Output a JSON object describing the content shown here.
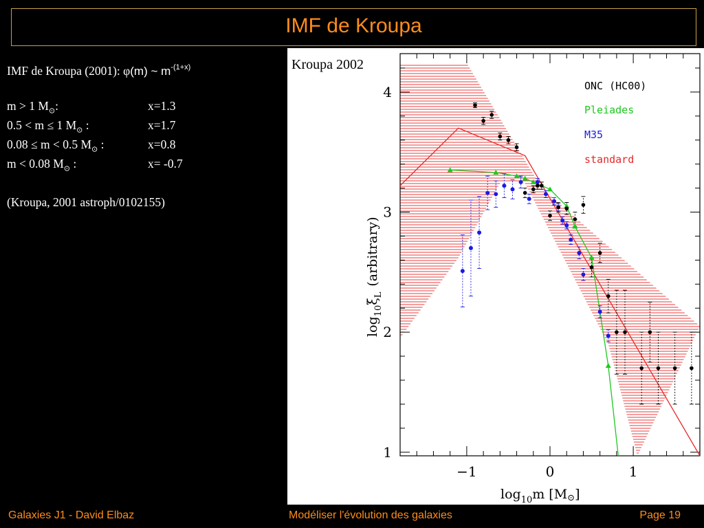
{
  "slide": {
    "title": "IMF de Kroupa"
  },
  "text_panel": {
    "heading_prefix": "IMF de Kroupa (2001): ",
    "phi_symbol": "φ",
    "heading_formula": "(m) ~ m",
    "heading_exponent": "-(1+x)",
    "rows": [
      {
        "mass": "m > 1 M",
        "sep": ":",
        "slope": "x=1.3"
      },
      {
        "mass": "0.5 < m ≤ 1 M",
        "sep": " :",
        "slope": "x=1.7"
      },
      {
        "mass": "0.08 ≤ m < 0.5 M",
        "sep": " :",
        "slope": "x=0.8"
      },
      {
        "mass": "m < 0.08 M",
        "sep": " :",
        "slope": "x= -0.7"
      }
    ],
    "sun_symbol": "⊙",
    "reference": "(Kroupa, 2001 astroph/0102155)"
  },
  "chart_data": {
    "type": "scatter",
    "title": "Kroupa 2002",
    "xlabel_main": "log",
    "xlabel_sub": "10",
    "xlabel_rest": "m [M",
    "xlabel_sun": "⊙",
    "xlabel_close": "]",
    "ylabel_main": "log",
    "ylabel_sub": "10",
    "ylabel_xi": "ξ",
    "ylabel_L": "L",
    "ylabel_rest": "(arbitrary)",
    "xlim": [
      -1.8,
      1.8
    ],
    "ylim": [
      0.97,
      4.32
    ],
    "xticks": [
      -1,
      0,
      1
    ],
    "xtick_labels": [
      "−1",
      "0",
      "1"
    ],
    "yticks": [
      1,
      2,
      3,
      4
    ],
    "ytick_labels": [
      "1",
      "2",
      "3",
      "4"
    ],
    "legend_position": "top-right",
    "colors": {
      "ONC": "#000000",
      "Pleiades": "#1ec81e",
      "M35": "#1a1ae6",
      "standard": "#e62828"
    },
    "series": [
      {
        "name": "ONC (HC00)",
        "key": "ONC",
        "marker": "circle",
        "points": [
          [
            -0.9,
            3.89,
            0.02
          ],
          [
            -0.8,
            3.76,
            0.03
          ],
          [
            -0.7,
            3.81,
            0.03
          ],
          [
            -0.6,
            3.63,
            0.03
          ],
          [
            -0.5,
            3.6,
            0.03
          ],
          [
            -0.4,
            3.54,
            0.03
          ],
          [
            -0.3,
            3.16,
            0.04
          ],
          [
            -0.2,
            3.19,
            0.03
          ],
          [
            -0.15,
            3.22,
            0.03
          ],
          [
            -0.1,
            3.22,
            0.03
          ],
          [
            0.0,
            2.97,
            0.04
          ],
          [
            0.1,
            3.04,
            0.04
          ],
          [
            0.2,
            3.03,
            0.05
          ],
          [
            0.3,
            2.94,
            0.06
          ],
          [
            0.4,
            3.06,
            0.07
          ],
          [
            0.5,
            2.54,
            0.08
          ],
          [
            0.6,
            2.66,
            0.08
          ],
          [
            0.7,
            2.3,
            0.14
          ],
          [
            0.8,
            2.0,
            0.35
          ],
          [
            0.9,
            2.0,
            0.35
          ],
          [
            1.1,
            1.7,
            0.3
          ],
          [
            1.2,
            2.0,
            0.25
          ],
          [
            1.3,
            1.7,
            0.3
          ],
          [
            1.5,
            1.7,
            0.3
          ],
          [
            1.7,
            1.7,
            0.3
          ]
        ]
      },
      {
        "name": "Pleiades",
        "key": "Pleiades",
        "marker": "triangle",
        "points": [
          [
            -1.2,
            3.35
          ],
          [
            -0.65,
            3.33
          ],
          [
            -0.4,
            3.3
          ],
          [
            -0.3,
            3.28
          ],
          [
            -0.2,
            3.25
          ],
          [
            0.0,
            3.19
          ],
          [
            0.2,
            3.05
          ],
          [
            0.3,
            2.88
          ],
          [
            0.5,
            2.62
          ],
          [
            0.7,
            1.72
          ]
        ]
      },
      {
        "name": "M35",
        "key": "M35",
        "marker": "circle",
        "points": [
          [
            -1.05,
            2.51,
            0.3
          ],
          [
            -0.95,
            2.7,
            0.4
          ],
          [
            -0.85,
            2.83,
            0.3
          ],
          [
            -0.75,
            3.16,
            0.14
          ],
          [
            -0.65,
            3.15,
            0.11
          ],
          [
            -0.55,
            3.22,
            0.1
          ],
          [
            -0.45,
            3.19,
            0.08
          ],
          [
            -0.35,
            3.25,
            0.05
          ],
          [
            -0.25,
            3.11,
            0.04
          ],
          [
            -0.15,
            3.25,
            0.03
          ],
          [
            -0.05,
            3.15,
            0.03
          ],
          [
            0.05,
            3.09,
            0.03
          ],
          [
            0.1,
            3.04,
            0.03
          ],
          [
            0.15,
            2.93,
            0.03
          ],
          [
            0.2,
            2.89,
            0.03
          ],
          [
            0.25,
            2.77,
            0.04
          ],
          [
            0.35,
            2.66,
            0.05
          ],
          [
            0.4,
            2.48,
            0.05
          ],
          [
            0.6,
            2.17,
            0.05
          ],
          [
            0.7,
            1.97,
            0.05
          ]
        ]
      },
      {
        "name": "standard",
        "key": "standard",
        "points": [
          [
            -1.8,
            3.22
          ],
          [
            -1.1,
            3.7
          ],
          [
            -0.3,
            3.47
          ],
          [
            1.8,
            0.97
          ]
        ]
      }
    ],
    "standard_band": {
      "upper": [
        [
          -1.8,
          4.24
        ],
        [
          -1.0,
          4.24
        ],
        [
          -0.1,
          3.2
        ],
        [
          1.8,
          2.05
        ]
      ],
      "lower": [
        [
          -1.8,
          1.95
        ],
        [
          -1.1,
          2.62
        ],
        [
          -0.6,
          3.24
        ],
        [
          -0.3,
          3.24
        ],
        [
          0.7,
          1.9
        ],
        [
          1.05,
          0.97
        ]
      ]
    },
    "pleiades_curve": [
      [
        0.7,
        1.72
      ],
      [
        0.82,
        0.97
      ]
    ]
  },
  "footer": {
    "left": "Galaxies J1 - David Elbaz",
    "center": "Modéliser l'évolution des galaxies",
    "right": "Page 19"
  }
}
